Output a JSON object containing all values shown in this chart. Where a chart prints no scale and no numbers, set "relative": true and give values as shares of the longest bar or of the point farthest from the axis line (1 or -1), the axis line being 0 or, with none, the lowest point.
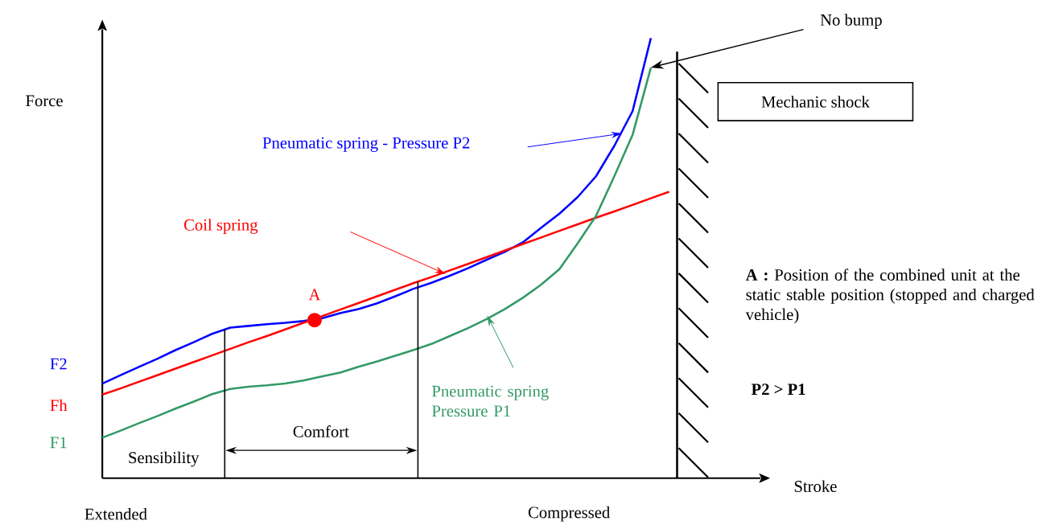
{
  "chart_data": {
    "type": "line",
    "relative": true,
    "ylabel": "Force",
    "categories": [
      null,
      null,
      null,
      null,
      null,
      null,
      null,
      null,
      null,
      null,
      null,
      null,
      null,
      null,
      null,
      null,
      null,
      null,
      null,
      null,
      null,
      null,
      null,
      null,
      null,
      null,
      null,
      null,
      null,
      null,
      null,
      null
    ],
    "series": [
      {
        "name": "Pneumatic spring - Pressure P2",
        "color": "#0000ff",
        "values": [
          0.215,
          0.234,
          0.253,
          0.271,
          0.291,
          0.309,
          0.328,
          0.342,
          0.346,
          0.35,
          0.353,
          0.357,
          0.363,
          0.375,
          0.384,
          0.397,
          0.413,
          0.43,
          0.444,
          0.46,
          0.477,
          0.496,
          0.514,
          0.536,
          0.569,
          0.601,
          0.639,
          0.686,
          0.755,
          0.834,
          1.0,
          null
        ]
      },
      {
        "name": "Coil spring",
        "color": "#ff0000",
        "values": [
          0.19,
          0.204,
          0.219,
          0.234,
          0.249,
          0.264,
          0.279,
          0.294,
          0.309,
          0.323,
          0.338,
          0.353,
          0.368,
          0.383,
          0.398,
          0.413,
          0.428,
          0.443,
          0.457,
          0.472,
          0.487,
          0.502,
          0.517,
          0.532,
          0.547,
          0.562,
          0.577,
          0.592,
          0.606,
          0.621,
          0.636,
          0.651
        ]
      },
      {
        "name": "Pneumatic spring Pressure P1",
        "color": "#339966",
        "values": [
          0.092,
          0.108,
          0.125,
          0.141,
          0.158,
          0.174,
          0.191,
          0.203,
          0.208,
          0.211,
          0.215,
          0.222,
          0.231,
          0.24,
          0.253,
          0.265,
          0.278,
          0.291,
          0.305,
          0.323,
          0.341,
          0.361,
          0.384,
          0.41,
          0.44,
          0.475,
          0.534,
          0.596,
          0.686,
          0.78,
          0.933,
          null
        ]
      }
    ],
    "annotations": [
      "No bump",
      "A",
      "F2",
      "Fh",
      "F1",
      "**A :** Position of the combined unit at the static stable position (stopped and charged vehicle)",
      "P2 > P1",
      "Extended",
      "Compressed",
      "Sensibility",
      "Comfort",
      "Mechanic shock",
      "Stroke"
    ]
  }
}
